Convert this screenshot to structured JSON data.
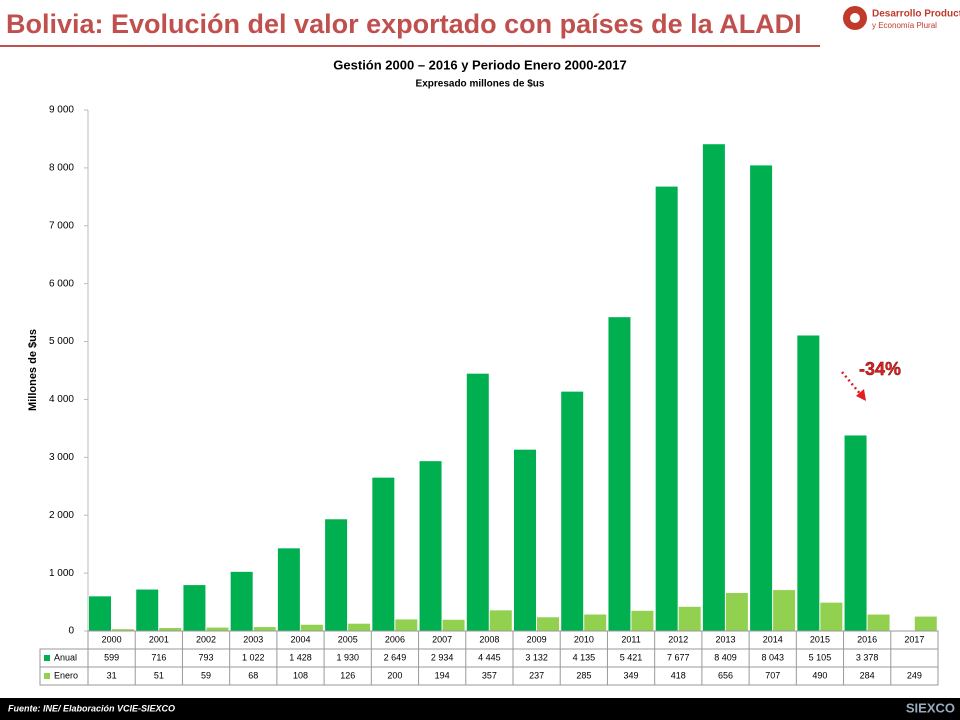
{
  "header": {
    "title": "Bolivia: Evolución del valor exportado con países de la ALADI",
    "logo_lines": [
      "Desarrollo Productivo",
      "y Economía Plural"
    ]
  },
  "chart_data": {
    "type": "bar",
    "title": "Gestión 2000 – 2016 y Periodo Enero 2000-2017",
    "subtitle": "Expresado millones de $us",
    "y_label": "Millones de $us",
    "categories": [
      "2000",
      "2001",
      "2002",
      "2003",
      "2004",
      "2005",
      "2006",
      "2007",
      "2008",
      "2009",
      "2010",
      "2011",
      "2012",
      "2013",
      "2014",
      "2015",
      "2016",
      "2017"
    ],
    "series": [
      {
        "name": "Anual",
        "color": "#00b050",
        "values": [
          599,
          716,
          793,
          1022,
          1428,
          1930,
          2649,
          2934,
          4445,
          3132,
          4135,
          5421,
          7677,
          8409,
          8043,
          5105,
          3378,
          null
        ],
        "value_labels": [
          "599",
          "716",
          "793",
          "1 022",
          "1 428",
          "1 930",
          "2 649",
          "2 934",
          "4 445",
          "3 132",
          "4 135",
          "5 421",
          "7 677",
          "8 409",
          "8 043",
          "5 105",
          "3 378",
          null
        ]
      },
      {
        "name": "Enero",
        "color": "#92d050",
        "values": [
          31,
          51,
          59,
          68,
          108,
          126,
          200,
          194,
          357,
          237,
          285,
          349,
          418,
          656,
          707,
          490,
          284,
          249
        ]
      }
    ],
    "ylim": [
      0,
      9000
    ],
    "yticks": [
      0,
      {
        "value": 1000,
        "label": "1 000"
      },
      {
        "value": 2000,
        "label": "2 000"
      },
      {
        "value": 3000,
        "label": "3 000"
      },
      {
        "value": 4000,
        "label": "4 000"
      },
      {
        "value": 5000,
        "label": "5 000"
      },
      {
        "value": 6000,
        "label": "6 000"
      },
      {
        "value": 7000,
        "label": "7 000"
      },
      {
        "value": 8000,
        "label": "8 000"
      },
      {
        "value": 9000,
        "label": "9 000"
      }
    ],
    "annotation": "-34%"
  },
  "footer": {
    "source": "Fuente: INE/ Elaboración VCIE-SIEXCO",
    "logo": "SIEXCO"
  }
}
